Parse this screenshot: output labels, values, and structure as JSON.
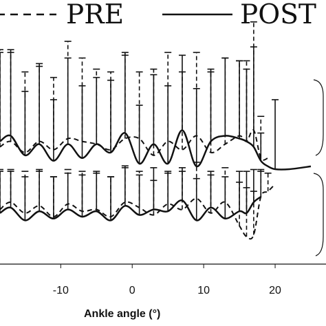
{
  "chart_data": {
    "type": "line",
    "xlabel": "Ankle angle (°)",
    "x_ticks": [
      -10,
      0,
      10,
      20
    ],
    "xlim": [
      -18.5,
      25
    ],
    "legend_position": "top",
    "legend": [
      {
        "name": "PRE",
        "style": "dashed"
      },
      {
        "name": "POST",
        "style": "solid"
      }
    ],
    "panels": [
      {
        "name": "upper",
        "ylim": [
          0,
          1
        ],
        "series": [
          {
            "name": "PRE",
            "style": "dashed",
            "x": [
              -18.5,
              -17,
              -15,
              -13,
              -11,
              -9,
              -7,
              -5,
              -3,
              -1,
              1,
              3,
              5,
              7,
              9,
              11,
              13,
              15,
              16,
              17,
              18,
              19
            ],
            "y": [
              0.18,
              0.22,
              0.14,
              0.22,
              0.16,
              0.24,
              0.22,
              0.2,
              0.16,
              0.24,
              0.24,
              0.12,
              0.22,
              0.16,
              0.26,
              0.14,
              0.2,
              0.26,
              0.22,
              0.3,
              0.1,
              0.1
            ],
            "error": [
              0.7,
              0.66,
              0.58,
              0.54,
              0.52,
              0.7,
              0.6,
              0.54,
              0.56,
              0.6,
              0.48,
              0.62,
              0.64,
              0.56,
              0.6,
              0.58,
              0.62,
              0.54,
              0.58,
              0.78,
              0.3,
              0.0
            ]
          },
          {
            "name": "POST",
            "style": "solid",
            "x": [
              -18.5,
              -17,
              -15,
              -13,
              -11,
              -9,
              -7,
              -5,
              -3,
              -1,
              1,
              3,
              5,
              7,
              9,
              11,
              13,
              15,
              16,
              17,
              18,
              19,
              20,
              22,
              25
            ],
            "y": [
              0.22,
              0.26,
              0.12,
              0.2,
              0.08,
              0.2,
              0.1,
              0.2,
              0.14,
              0.28,
              0.06,
              0.2,
              0.06,
              0.3,
              0.04,
              0.22,
              0.26,
              0.24,
              0.22,
              0.18,
              0.08,
              0.04,
              0.02,
              0.02,
              0.04
            ],
            "error": [
              0.64,
              0.6,
              0.46,
              0.58,
              0.44,
              0.62,
              0.52,
              0.48,
              0.52,
              0.58,
              0.42,
              0.5,
              0.56,
              0.54,
              0.56,
              0.52,
              0.56,
              0.56,
              0.52,
              0.72,
              0.2,
              0.0,
              0.5,
              0.0,
              0.0
            ]
          }
        ]
      },
      {
        "name": "lower",
        "ylim": [
          0,
          1
        ],
        "series": [
          {
            "name": "PRE",
            "style": "dashed",
            "x": [
              -18.5,
              -17,
              -15,
              -13,
              -11,
              -9,
              -7,
              -5,
              -3,
              -1,
              1,
              3,
              5,
              7,
              9,
              11,
              13,
              15,
              16,
              17,
              18,
              19,
              20
            ],
            "y": [
              0.42,
              0.5,
              0.38,
              0.46,
              0.34,
              0.48,
              0.4,
              0.42,
              0.34,
              0.5,
              0.44,
              0.36,
              0.48,
              0.42,
              0.54,
              0.38,
              0.5,
              0.24,
              0.12,
              0.14,
              0.56,
              0.62,
              0.7
            ],
            "error": [
              0.44,
              0.36,
              0.46,
              0.4,
              0.44,
              0.38,
              0.44,
              0.42,
              0.44,
              0.4,
              0.4,
              0.38,
              0.34,
              0.42,
              0.4,
              0.42,
              0.38,
              0.48,
              0.54,
              0.48,
              0.28,
              0.2,
              0.0
            ]
          },
          {
            "name": "POST",
            "style": "solid",
            "x": [
              -18.5,
              -17,
              -15,
              -13,
              -11,
              -9,
              -7,
              -5,
              -3,
              -1,
              1,
              3,
              5,
              7,
              9,
              11,
              13,
              15,
              16,
              17,
              18
            ],
            "y": [
              0.38,
              0.44,
              0.3,
              0.4,
              0.32,
              0.42,
              0.34,
              0.4,
              0.3,
              0.46,
              0.36,
              0.42,
              0.4,
              0.52,
              0.3,
              0.44,
              0.32,
              0.4,
              0.38,
              0.5,
              0.56
            ],
            "error": [
              0.46,
              0.4,
              0.48,
              0.44,
              0.46,
              0.4,
              0.46,
              0.42,
              0.48,
              0.42,
              0.44,
              0.46,
              0.44,
              0.36,
              0.46,
              0.4,
              0.46,
              0.44,
              0.46,
              0.36,
              0.3
            ]
          }
        ]
      }
    ]
  }
}
